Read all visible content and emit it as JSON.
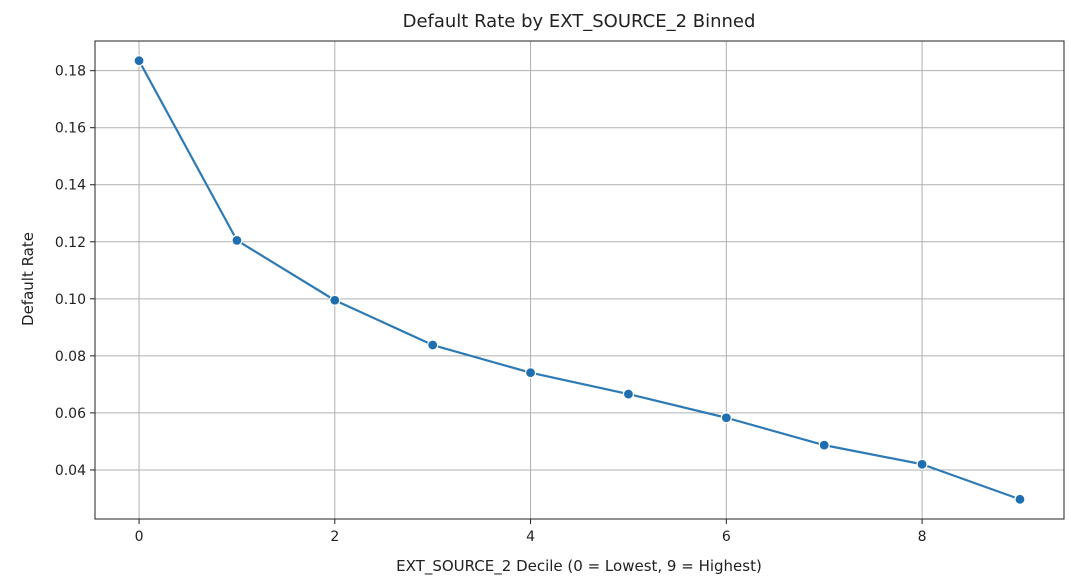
{
  "chart_data": {
    "type": "line",
    "title": "Default Rate by EXT_SOURCE_2 Binned",
    "xlabel": "EXT_SOURCE_2 Decile (0 = Lowest, 9 = Highest)",
    "ylabel": "Default Rate",
    "x": [
      0,
      1,
      2,
      3,
      4,
      5,
      6,
      7,
      8,
      9
    ],
    "series": [
      {
        "name": "",
        "values": [
          0.1835,
          0.1205,
          0.0995,
          0.0838,
          0.0741,
          0.0666,
          0.0583,
          0.0487,
          0.042,
          0.0297
        ]
      }
    ],
    "xlim": [
      -0.45,
      9.45
    ],
    "ylim": [
      0.0228,
      0.1904
    ],
    "x_ticks": [
      "0",
      "2",
      "4",
      "6",
      "8"
    ],
    "y_ticks": [
      "0.04",
      "0.06",
      "0.08",
      "0.10",
      "0.12",
      "0.14",
      "0.16",
      "0.18"
    ],
    "grid": true,
    "legend": "none",
    "colors": {
      "line": "#2e7ab5",
      "marker": "#1f6fb0",
      "grid": "#b0b0b0",
      "axis": "#222222"
    }
  }
}
